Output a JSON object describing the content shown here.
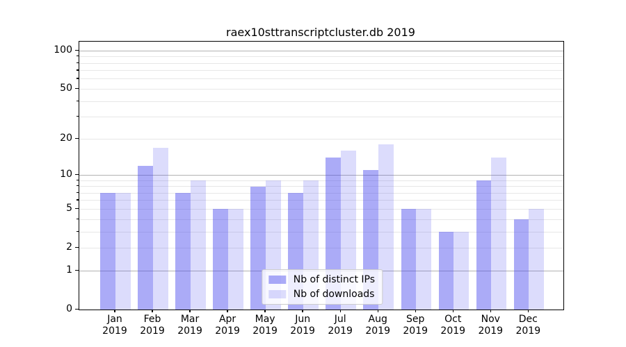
{
  "title": "raex10sttranscriptcluster.db 2019",
  "chart_data": {
    "type": "bar",
    "title": "raex10sttranscriptcluster.db 2019",
    "y_scale": "log10(value+1)",
    "ylim": [
      0,
      118
    ],
    "grid": true,
    "categories": [
      "Jan",
      "Feb",
      "Mar",
      "Apr",
      "May",
      "Jun",
      "Jul",
      "Aug",
      "Sep",
      "Oct",
      "Nov",
      "Dec"
    ],
    "x_year_label": "2019",
    "series": [
      {
        "name": "Nb of distinct IPs",
        "color": "#a9a9f5",
        "fill": "rgba(68,68,238,0.45)",
        "values": [
          7,
          12,
          7,
          5,
          8,
          7,
          14,
          11,
          5,
          3,
          9,
          4
        ]
      },
      {
        "name": "Nb of downloads",
        "color": "#dcdcf9",
        "fill": "rgba(68,68,238,0.19)",
        "values": [
          7,
          17,
          9,
          5,
          9,
          9,
          16,
          18,
          5,
          3,
          14,
          5
        ]
      }
    ],
    "y_labeled_ticks": [
      100,
      50,
      20,
      10,
      5,
      2,
      1,
      0
    ],
    "y_major_gridlines": [
      1,
      10,
      100
    ],
    "y_minor_gridlines": [
      2,
      3,
      4,
      5,
      6,
      7,
      8,
      9,
      20,
      30,
      40,
      50,
      60,
      70,
      80,
      90
    ],
    "legend_position": "lower center"
  },
  "colors": {
    "background": "#ffffff",
    "text": "#000000",
    "spine": "#000000",
    "grid_major": "#b2b2b2",
    "grid_minor": "#e7e7e7",
    "legend_bg": "rgba(255,255,255,0.8)",
    "legend_border": "#cccccc"
  }
}
